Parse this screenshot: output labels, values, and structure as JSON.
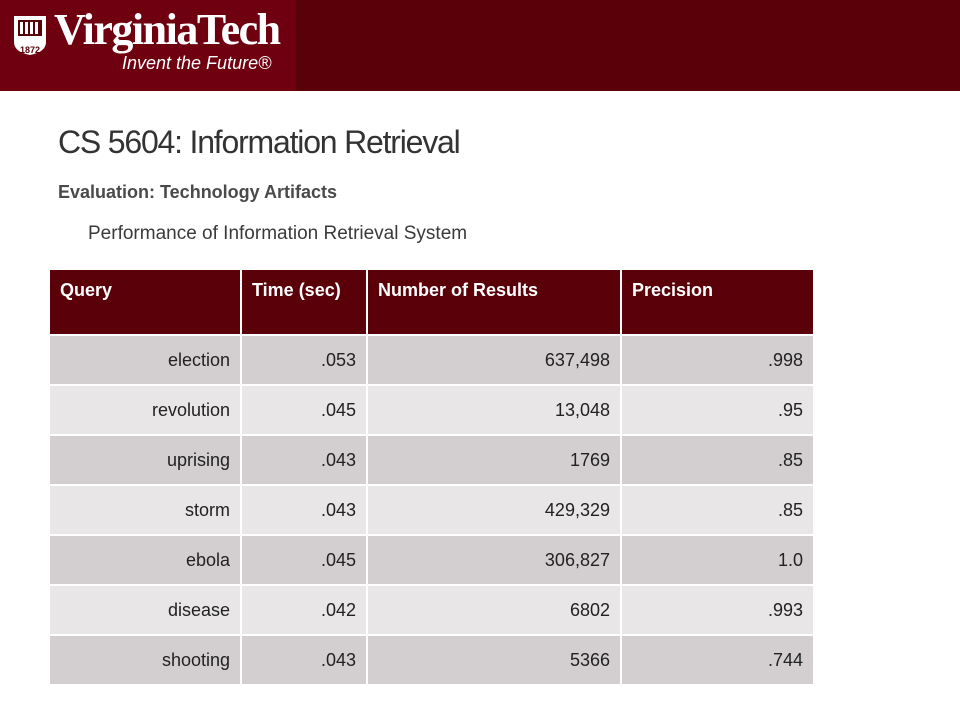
{
  "header": {
    "logo_text": "VirginiaTech",
    "tagline": "Invent the Future®",
    "shield_year": "1872"
  },
  "slide": {
    "title": "CS 5604: Information Retrieval",
    "subtitle": "Evaluation: Technology Artifacts",
    "bullet": "Performance of Information Retrieval System"
  },
  "table": {
    "headers": [
      "Query",
      "Time (sec)",
      "Number of Results",
      "Precision"
    ],
    "rows": [
      [
        "election",
        ".053",
        "637,498",
        ".998"
      ],
      [
        "revolution",
        ".045",
        "13,048",
        ".95"
      ],
      [
        "uprising",
        ".043",
        "1769",
        ".85"
      ],
      [
        "storm",
        ".043",
        "429,329",
        ".85"
      ],
      [
        "ebola",
        ".045",
        "306,827",
        "1.0"
      ],
      [
        "disease",
        ".042",
        "6802",
        ".993"
      ],
      [
        "shooting",
        ".043",
        "5366",
        ".744"
      ]
    ]
  },
  "colors": {
    "brand_maroon": "#5a0008",
    "row_dark": "#d3cecf",
    "row_light": "#e8e6e7"
  }
}
